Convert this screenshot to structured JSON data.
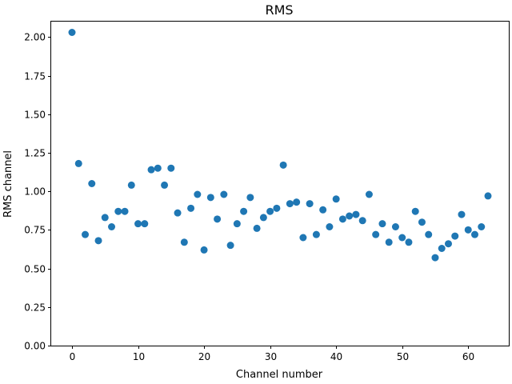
{
  "chart_data": {
    "type": "scatter",
    "title": "RMS",
    "xlabel": "Channel number",
    "ylabel": "RMS channel",
    "xlim": [
      -3.15,
      66.15
    ],
    "ylim": [
      0,
      2.1
    ],
    "xticks": [
      0,
      10,
      20,
      30,
      40,
      50,
      60
    ],
    "xtick_labels": [
      "0",
      "10",
      "20",
      "30",
      "40",
      "50",
      "60"
    ],
    "yticks": [
      0,
      0.25,
      0.5,
      0.75,
      1.0,
      1.25,
      1.5,
      1.75,
      2.0
    ],
    "ytick_labels": [
      "0.00",
      "0.25",
      "0.50",
      "0.75",
      "1.00",
      "1.25",
      "1.50",
      "1.75",
      "2.00"
    ],
    "grid": false,
    "legend": false,
    "marker_color": "#1f77b4",
    "series": [
      {
        "x": [
          0,
          1,
          2,
          3,
          4,
          5,
          6,
          7,
          8,
          9,
          10,
          11,
          12,
          13,
          14,
          15,
          16,
          17,
          18,
          19,
          20,
          21,
          22,
          23,
          24,
          25,
          26,
          27,
          28,
          29,
          30,
          31,
          32,
          33,
          34,
          35,
          36,
          37,
          38,
          39,
          40,
          41,
          42,
          43,
          44,
          45,
          46,
          47,
          48,
          49,
          50,
          51,
          52,
          53,
          54,
          55,
          56,
          57,
          58,
          59,
          60,
          61,
          62,
          63
        ],
        "y": [
          2.03,
          1.18,
          0.72,
          1.05,
          0.68,
          0.83,
          0.77,
          0.87,
          0.87,
          1.04,
          0.79,
          0.79,
          1.14,
          1.15,
          1.04,
          1.15,
          0.86,
          0.67,
          0.89,
          0.98,
          0.62,
          0.96,
          0.82,
          0.98,
          0.65,
          0.79,
          0.87,
          0.96,
          0.76,
          0.83,
          0.87,
          0.89,
          1.17,
          0.92,
          0.93,
          0.7,
          0.92,
          0.72,
          0.88,
          0.77,
          0.95,
          0.82,
          0.84,
          0.85,
          0.81,
          0.98,
          0.72,
          0.79,
          0.67,
          0.77,
          0.7,
          0.67,
          0.87,
          0.8,
          0.72,
          0.57,
          0.63,
          0.66,
          0.71,
          0.85,
          0.75,
          0.72,
          0.77,
          0.97
        ]
      }
    ]
  }
}
